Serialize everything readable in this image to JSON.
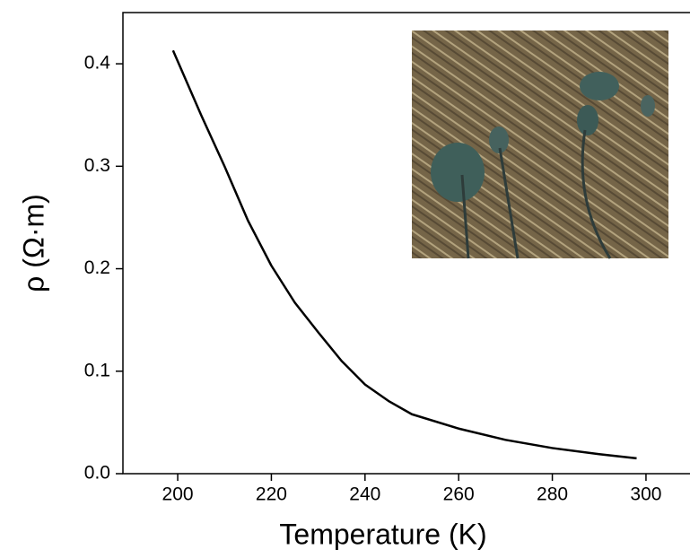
{
  "chart_data": {
    "type": "line",
    "x_label": "Temperature (K)",
    "y_label": "ρ (Ω·m)",
    "x": [
      199,
      205,
      210,
      215,
      220,
      225,
      230,
      235,
      240,
      245,
      250,
      260,
      270,
      280,
      290,
      298
    ],
    "series": [
      {
        "color": "#000000",
        "values": [
          0.413,
          0.35,
          0.3,
          0.247,
          0.203,
          0.167,
          0.138,
          0.11,
          0.087,
          0.071,
          0.058,
          0.044,
          0.033,
          0.025,
          0.019,
          0.015
        ]
      }
    ],
    "xlim": [
      188.3,
      309.4
    ],
    "ylim": [
      0,
      0.45
    ],
    "xticks": [
      200,
      220,
      240,
      260,
      280,
      300
    ],
    "yticks": [
      {
        "value": 0,
        "label": "0.0"
      },
      0.1,
      0.2,
      0.3,
      0.4
    ]
  }
}
